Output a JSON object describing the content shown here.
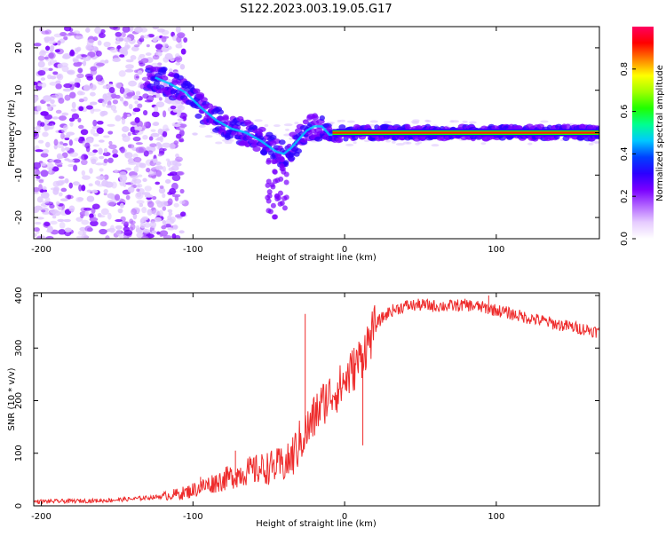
{
  "title": "S122.2023.003.19.05.G17",
  "colors": {
    "background": "#ffffff",
    "axis": "#000000",
    "snr_line": "#ee2c2c",
    "colormap": [
      "#ffffff",
      "#e6ccff",
      "#b366ff",
      "#7a00ff",
      "#2b00ff",
      "#0040ff",
      "#00c8ff",
      "#00ff90",
      "#20ff00",
      "#a0ff00",
      "#ffff00",
      "#ff8000",
      "#ff0000",
      "#ff0060"
    ]
  },
  "chart_data": [
    {
      "type": "heatmap",
      "name": "spectrogram",
      "title": "",
      "xlabel": "Height of straight line (km)",
      "ylabel": "Frequency (Hz)",
      "xlim": [
        -205,
        168
      ],
      "ylim": [
        -25,
        25
      ],
      "x_ticks": [
        -200,
        -100,
        0,
        100
      ],
      "y_ticks": [
        -20,
        -10,
        0,
        10,
        20
      ],
      "grid": false,
      "ridge": {
        "x": [
          -125,
          -115,
          -105,
          -95,
          -85,
          -75,
          -65,
          -55,
          -45,
          -40,
          -35,
          -30,
          -25,
          -20,
          -15,
          -10,
          -5,
          0,
          50,
          100,
          168
        ],
        "y": [
          13,
          11.5,
          9.5,
          6,
          3,
          1,
          0,
          -2,
          -4.5,
          -5,
          -3.5,
          -1.5,
          0.5,
          1.5,
          1.5,
          -0.5,
          -0.5,
          0,
          0,
          0,
          0
        ]
      },
      "colorbar": {
        "label": "Normalized spectral amplitude",
        "range": [
          0.0,
          1.0
        ],
        "ticks": [
          "0.0",
          "0.2",
          "0.4",
          "0.6",
          "0.8"
        ]
      }
    },
    {
      "type": "line",
      "name": "snr",
      "title": "",
      "xlabel": "Height of straight line (km)",
      "ylabel": "SNR (10 * v/v)",
      "xlim": [
        -205,
        168
      ],
      "ylim": [
        0,
        405
      ],
      "x_ticks": [
        -200,
        -100,
        0,
        100
      ],
      "y_ticks": [
        0,
        100,
        200,
        300,
        400
      ],
      "grid": false,
      "series": [
        {
          "x": [
            -205,
            -180,
            -160,
            -140,
            -120,
            -105,
            -95,
            -85,
            -75,
            -65,
            -55,
            -45,
            -38,
            -33,
            -28,
            -23,
            -18,
            -13,
            -8,
            -3,
            2,
            7,
            12,
            17,
            22,
            30,
            40,
            50,
            60,
            70,
            80,
            90,
            100,
            110,
            120,
            130,
            140,
            150,
            160,
            168
          ],
          "values": [
            8,
            9,
            10,
            13,
            18,
            25,
            35,
            45,
            55,
            65,
            70,
            75,
            80,
            100,
            130,
            150,
            180,
            200,
            215,
            225,
            245,
            265,
            290,
            320,
            350,
            370,
            380,
            382,
            380,
            380,
            382,
            378,
            372,
            365,
            358,
            352,
            345,
            340,
            335,
            330
          ],
          "spikes": [
            [
              -26,
              365
            ],
            [
              12,
              115
            ],
            [
              95,
              400
            ],
            [
              -95,
              55
            ],
            [
              -72,
              105
            ]
          ]
        }
      ]
    }
  ]
}
